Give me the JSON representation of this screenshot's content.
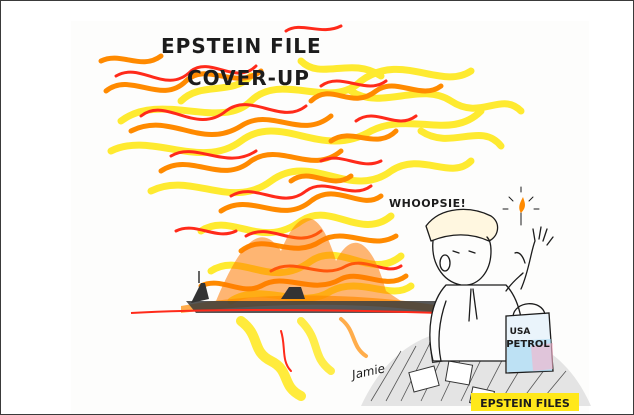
{
  "cartoon": {
    "title_line1": "EPSTEIN FILE",
    "title_line2": "COVER-UP",
    "speech": "WHOOPSIE!",
    "can_label_line1": "USA",
    "can_label_line2": "PETROL",
    "pile_label": "EPSTEIN FILES",
    "signature": "Jamie"
  },
  "colors": {
    "flame_yellow": "#ffe81a",
    "flame_orange": "#ff8a00",
    "flame_red": "#ff2a1a",
    "ink": "#1c1c1c",
    "can_blue": "#9fd3f0",
    "can_pink": "#f6b3c8"
  }
}
